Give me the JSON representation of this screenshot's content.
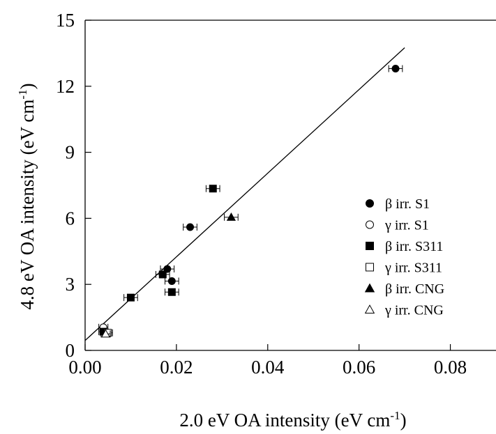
{
  "chart_data": {
    "type": "scatter",
    "xlabel": "2.0 eV OA intensity (eV cm",
    "xlabel_sup": "-1",
    "xlabel_end": ")",
    "ylabel": "4.8 eV OA intensity (eV cm",
    "ylabel_sup": "-1",
    "ylabel_end": ")",
    "xlim": [
      0.0,
      0.09
    ],
    "ylim": [
      0,
      15
    ],
    "x_ticks": [
      "0.00",
      "0.02",
      "0.04",
      "0.06",
      "0.08"
    ],
    "y_ticks": [
      "0",
      "3",
      "6",
      "9",
      "12",
      "15"
    ],
    "x_tick_values": [
      0.0,
      0.02,
      0.04,
      0.06,
      0.08
    ],
    "y_tick_values": [
      0,
      3,
      6,
      9,
      12,
      15
    ],
    "grid": false,
    "legend_position": "right",
    "series": [
      {
        "name": "β irr. S1",
        "marker": "circle",
        "filled": true,
        "points": [
          {
            "x": 0.068,
            "y": 12.8,
            "xerr": 0.0015
          },
          {
            "x": 0.023,
            "y": 5.6,
            "xerr": 0.0015
          },
          {
            "x": 0.018,
            "y": 3.7,
            "xerr": 0.0015
          },
          {
            "x": 0.019,
            "y": 3.15,
            "xerr": 0.0015
          }
        ]
      },
      {
        "name": "γ irr. S1",
        "marker": "circle",
        "filled": false,
        "points": [
          {
            "x": 0.004,
            "y": 1.05,
            "xerr": 0.001
          }
        ]
      },
      {
        "name": "β irr. S311",
        "marker": "square",
        "filled": true,
        "points": [
          {
            "x": 0.028,
            "y": 7.35,
            "xerr": 0.0015
          },
          {
            "x": 0.017,
            "y": 3.45,
            "xerr": 0.0015
          },
          {
            "x": 0.019,
            "y": 2.65,
            "xerr": 0.0015
          },
          {
            "x": 0.01,
            "y": 2.4,
            "xerr": 0.0015
          },
          {
            "x": 0.004,
            "y": 0.85,
            "xerr": 0.001
          }
        ]
      },
      {
        "name": "γ irr. S311",
        "marker": "square",
        "filled": false,
        "points": [
          {
            "x": 0.005,
            "y": 0.8,
            "xerr": 0.001
          }
        ]
      },
      {
        "name": "β irr. CNG",
        "marker": "triangle",
        "filled": true,
        "points": [
          {
            "x": 0.032,
            "y": 6.05,
            "xerr": 0.0015
          }
        ]
      },
      {
        "name": "γ irr. CNG",
        "marker": "triangle",
        "filled": false,
        "points": [
          {
            "x": 0.0045,
            "y": 0.75,
            "xerr": 0.001
          }
        ]
      }
    ],
    "fit_line": {
      "x": [
        0.0,
        0.07
      ],
      "y": [
        0.45,
        13.75
      ]
    }
  }
}
